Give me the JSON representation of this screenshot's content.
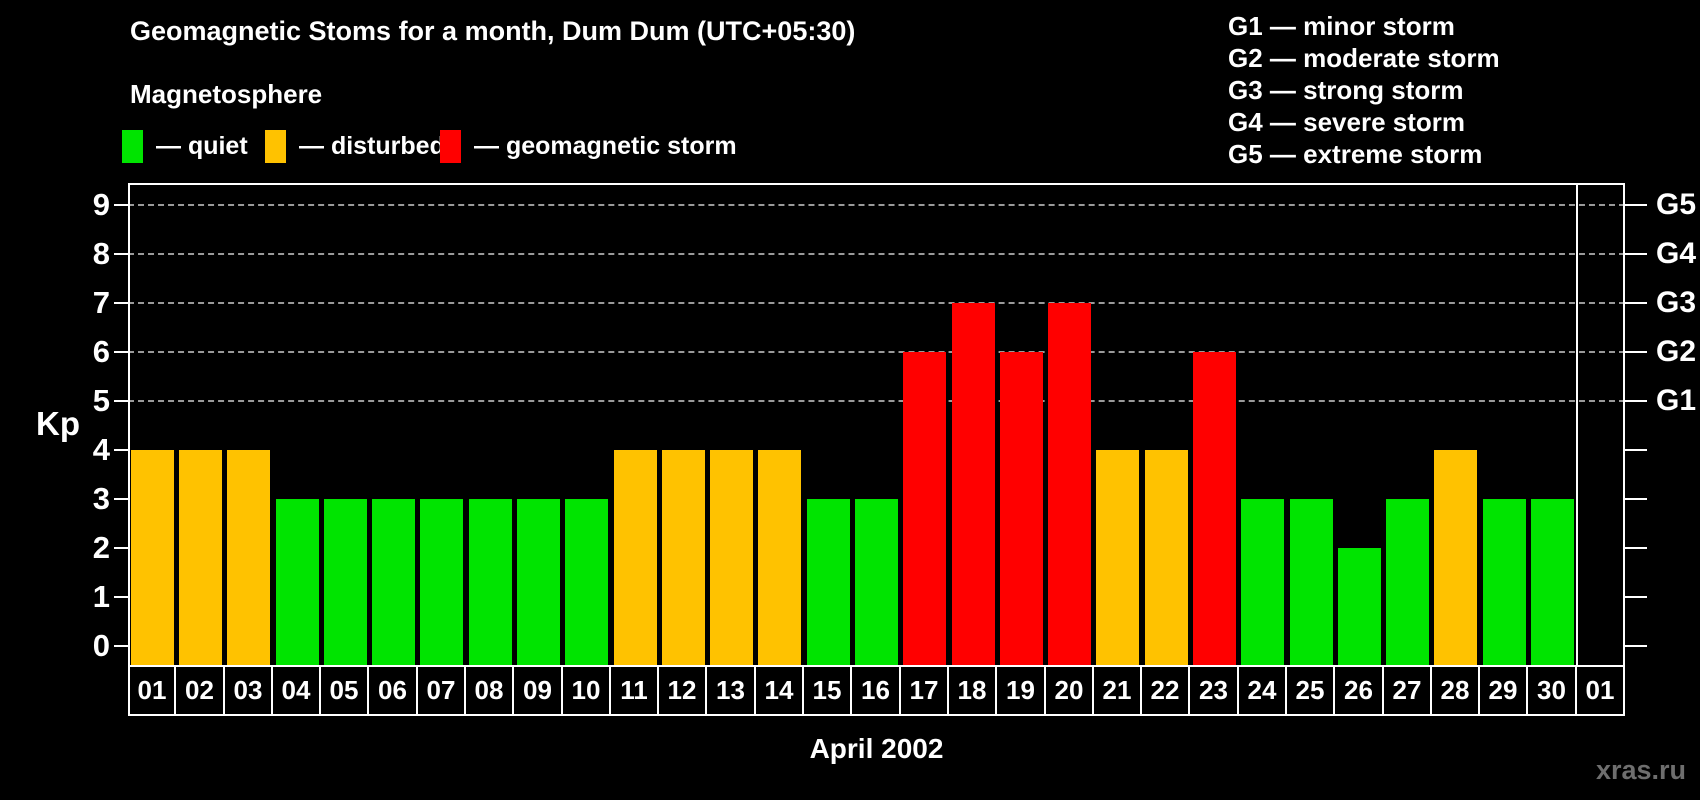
{
  "header": {
    "title": "Geomagnetic Stoms for a month, Dum Dum (UTC+05:30)",
    "subtitle": "Magnetosphere",
    "legend": [
      {
        "key": "quiet",
        "label": "— quiet",
        "color": "#00e400"
      },
      {
        "key": "disturbed",
        "label": "— disturbed",
        "color": "#ffc200"
      },
      {
        "key": "storm",
        "label": "— geomagnetic storm",
        "color": "#ff0000"
      }
    ],
    "g_scale": [
      {
        "label": "G1 — minor storm"
      },
      {
        "label": "G2 — moderate storm"
      },
      {
        "label": "G3 — strong storm"
      },
      {
        "label": "G4 — severe storm"
      },
      {
        "label": "G5 — extreme storm"
      }
    ]
  },
  "chart_data": {
    "type": "bar",
    "title": "Geomagnetic Stoms for a month, Dum Dum (UTC+05:30)",
    "xlabel": "April 2002",
    "ylabel": "Kp",
    "ylim": [
      0,
      9
    ],
    "grid": "dashed-horizontal",
    "legend_position": "top-left",
    "categories": [
      "01",
      "02",
      "03",
      "04",
      "05",
      "06",
      "07",
      "08",
      "09",
      "10",
      "11",
      "12",
      "13",
      "14",
      "15",
      "16",
      "17",
      "18",
      "19",
      "20",
      "21",
      "22",
      "23",
      "24",
      "25",
      "26",
      "27",
      "28",
      "29",
      "30",
      "01"
    ],
    "values": [
      4,
      4,
      4,
      3,
      3,
      3,
      3,
      3,
      3,
      3,
      4,
      4,
      4,
      4,
      3,
      3,
      6,
      7,
      6,
      7,
      4,
      4,
      6,
      3,
      3,
      2,
      3,
      4,
      3,
      3,
      null
    ],
    "statuses": [
      "disturbed",
      "disturbed",
      "disturbed",
      "quiet",
      "quiet",
      "quiet",
      "quiet",
      "quiet",
      "quiet",
      "quiet",
      "disturbed",
      "disturbed",
      "disturbed",
      "disturbed",
      "quiet",
      "quiet",
      "storm",
      "storm",
      "storm",
      "storm",
      "disturbed",
      "disturbed",
      "storm",
      "quiet",
      "quiet",
      "quiet",
      "quiet",
      "disturbed",
      "quiet",
      "quiet",
      null
    ],
    "status_colors": {
      "quiet": "#00e400",
      "disturbed": "#ffc200",
      "storm": "#ff0000"
    },
    "y_ticks": [
      0,
      1,
      2,
      3,
      4,
      5,
      6,
      7,
      8,
      9
    ],
    "gridlines_at_kp": [
      5,
      6,
      7,
      8,
      9
    ],
    "right_axis": [
      {
        "kp": 5,
        "label": "G1"
      },
      {
        "kp": 6,
        "label": "G2"
      },
      {
        "kp": 7,
        "label": "G3"
      },
      {
        "kp": 8,
        "label": "G4"
      },
      {
        "kp": 9,
        "label": "G5"
      }
    ],
    "month_separator_after_index": 29
  },
  "footer": {
    "xlabel": "April 2002",
    "watermark": "xras.ru"
  }
}
